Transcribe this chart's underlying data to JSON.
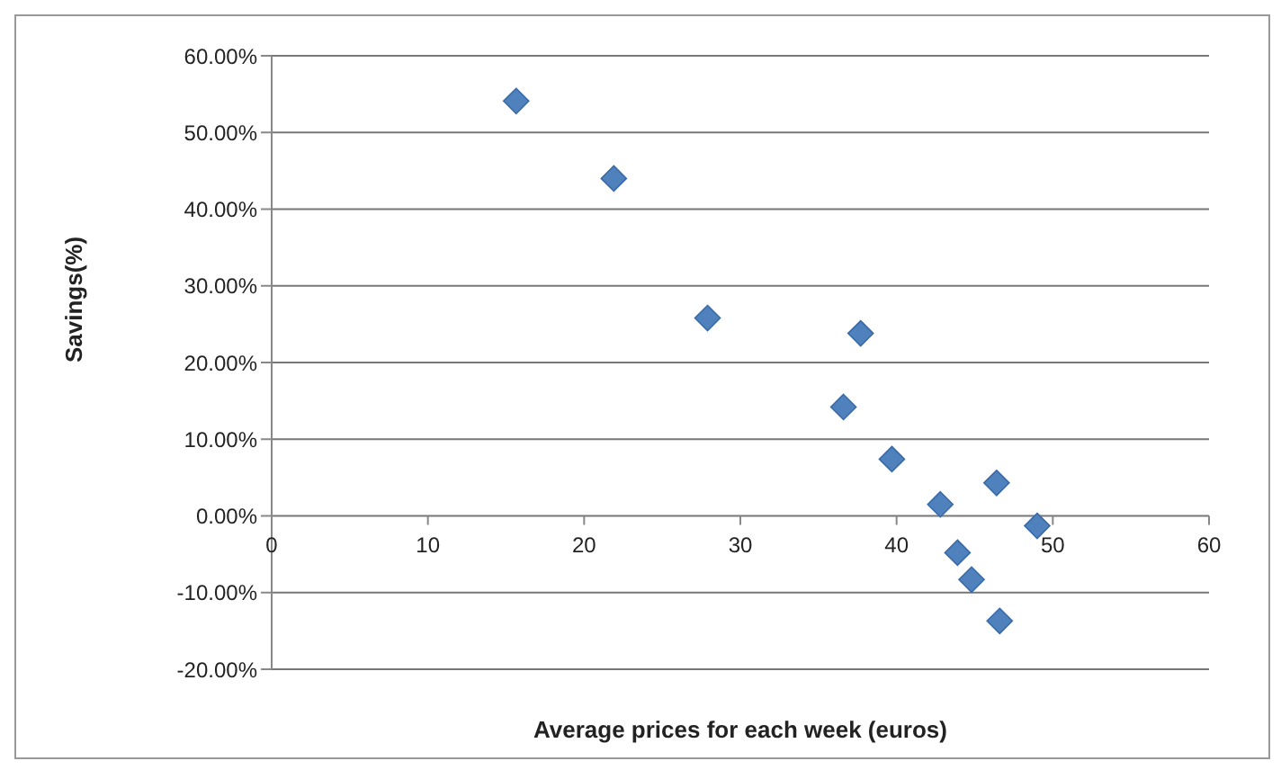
{
  "chart_data": {
    "type": "scatter",
    "xlabel": "Average prices for each week (euros)",
    "ylabel": "Savings(%)",
    "x": [
      15.65,
      21.9,
      27.9,
      37.7,
      36.6,
      39.7,
      42.8,
      46.4,
      49.0,
      43.9,
      44.8,
      46.6
    ],
    "series": [
      {
        "color": "#4f81bd",
        "values": [
          54.1,
          44.0,
          25.8,
          23.8,
          14.2,
          7.4,
          1.5,
          4.3,
          -1.3,
          -4.8,
          -8.3,
          -13.7
        ]
      }
    ],
    "xlim": [
      0,
      60
    ],
    "xticks": [
      0,
      10,
      20,
      30,
      40,
      50,
      60
    ],
    "ylim": [
      -20,
      60
    ],
    "yticks": [
      {
        "value": -20,
        "label": "-20.00%"
      },
      {
        "value": -10,
        "label": "-10.00%"
      },
      {
        "value": 0,
        "label": "0.00%"
      },
      {
        "value": 10,
        "label": "10.00%"
      },
      {
        "value": 20,
        "label": "20.00%"
      },
      {
        "value": 30,
        "label": "30.00%"
      },
      {
        "value": 40,
        "label": "40.00%"
      },
      {
        "value": 50,
        "label": "50.00%"
      },
      {
        "value": 60,
        "label": "60.00%"
      }
    ],
    "grid": "y",
    "marker": "diamond",
    "legend": false
  }
}
